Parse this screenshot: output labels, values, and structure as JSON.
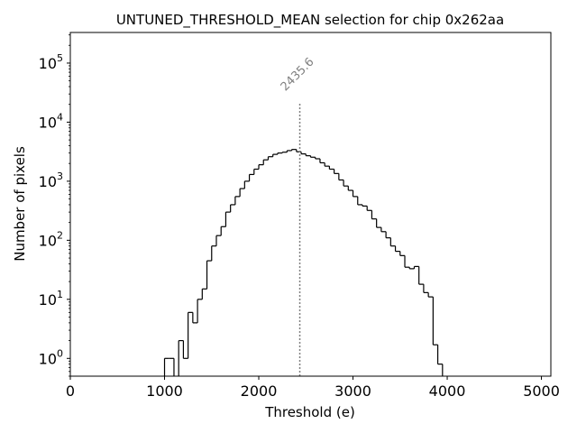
{
  "chart_data": {
    "type": "step-histogram",
    "title": "UNTUNED_THRESHOLD_MEAN selection for chip 0x262aa",
    "xlabel": "Threshold (e)",
    "ylabel": "Number of pixels",
    "xlim": [
      0,
      5100
    ],
    "ylim_log": [
      0.5,
      330000
    ],
    "yscale": "log",
    "grid": false,
    "bin_width": 50,
    "x_ticks": [
      {
        "value": 0,
        "label": "0"
      },
      {
        "value": 1000,
        "label": "1000"
      },
      {
        "value": 2000,
        "label": "2000"
      },
      {
        "value": 3000,
        "label": "3000"
      },
      {
        "value": 4000,
        "label": "4000"
      },
      {
        "value": 5000,
        "label": "5000"
      }
    ],
    "y_ticks": [
      {
        "value": 1,
        "base": "10",
        "exp": "0"
      },
      {
        "value": 10,
        "base": "10",
        "exp": "1"
      },
      {
        "value": 100,
        "base": "10",
        "exp": "2"
      },
      {
        "value": 1000,
        "base": "10",
        "exp": "3"
      },
      {
        "value": 10000,
        "base": "10",
        "exp": "4"
      },
      {
        "value": 100000,
        "base": "10",
        "exp": "5"
      }
    ],
    "bins": [
      [
        1000,
        1
      ],
      [
        1050,
        1
      ],
      [
        1100,
        0
      ],
      [
        1150,
        2
      ],
      [
        1200,
        1
      ],
      [
        1250,
        6
      ],
      [
        1300,
        4
      ],
      [
        1350,
        10
      ],
      [
        1400,
        15
      ],
      [
        1450,
        45
      ],
      [
        1500,
        80
      ],
      [
        1550,
        120
      ],
      [
        1600,
        170
      ],
      [
        1650,
        300
      ],
      [
        1700,
        400
      ],
      [
        1750,
        550
      ],
      [
        1800,
        750
      ],
      [
        1850,
        1000
      ],
      [
        1900,
        1300
      ],
      [
        1950,
        1600
      ],
      [
        2000,
        1900
      ],
      [
        2050,
        2300
      ],
      [
        2100,
        2600
      ],
      [
        2150,
        2850
      ],
      [
        2200,
        3000
      ],
      [
        2250,
        3100
      ],
      [
        2300,
        3300
      ],
      [
        2350,
        3450
      ],
      [
        2400,
        3150
      ],
      [
        2450,
        2900
      ],
      [
        2500,
        2700
      ],
      [
        2550,
        2550
      ],
      [
        2600,
        2400
      ],
      [
        2650,
        2050
      ],
      [
        2700,
        1800
      ],
      [
        2750,
        1600
      ],
      [
        2800,
        1350
      ],
      [
        2850,
        1050
      ],
      [
        2900,
        830
      ],
      [
        2950,
        700
      ],
      [
        3000,
        550
      ],
      [
        3050,
        400
      ],
      [
        3100,
        380
      ],
      [
        3150,
        320
      ],
      [
        3200,
        230
      ],
      [
        3250,
        165
      ],
      [
        3300,
        140
      ],
      [
        3350,
        110
      ],
      [
        3400,
        80
      ],
      [
        3450,
        65
      ],
      [
        3500,
        55
      ],
      [
        3550,
        35
      ],
      [
        3600,
        33
      ],
      [
        3650,
        36
      ],
      [
        3700,
        18
      ],
      [
        3750,
        13
      ],
      [
        3800,
        11
      ],
      [
        3850,
        1.7
      ],
      [
        3900,
        0.8
      ],
      [
        3950,
        0
      ]
    ],
    "reference_line": {
      "value": 2435.6,
      "label": "2435.6"
    },
    "colors": {
      "line": "#000000",
      "reference": "#808080"
    }
  }
}
